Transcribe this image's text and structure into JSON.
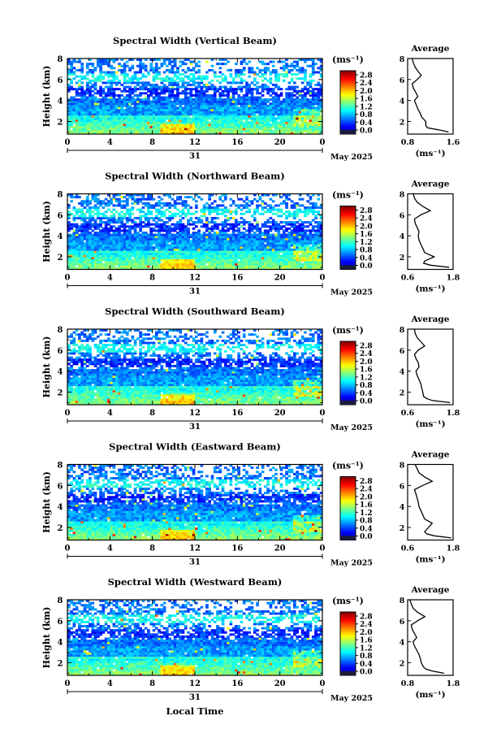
{
  "figure": {
    "xlabel": "Local Time",
    "date_label": "May 2025",
    "day_label": "31",
    "height_label": "Height (km)",
    "unit_label": "(ms⁻¹)",
    "avg_title": "Average",
    "avg_unit": "(ms⁻¹)"
  },
  "chart_data": [
    {
      "type": "heatmap",
      "title": "Spectral Width (Vertical Beam)",
      "x_ticks": [
        "0",
        "4",
        "8",
        "12",
        "16",
        "20",
        "0"
      ],
      "y_ticks": [
        "8",
        "6",
        "4",
        "2"
      ],
      "colorbar_ticks": [
        "2.8",
        "2.4",
        "2.0",
        "1.6",
        "1.2",
        "0.8",
        "0.4",
        "0.0"
      ],
      "xlim": [
        0,
        24
      ],
      "ylim": [
        0.8,
        8
      ],
      "clim": [
        0,
        2.8
      ],
      "profile": {
        "title": "Average",
        "xlim": [
          0.8,
          1.6
        ],
        "x_ticks": [
          "0.8",
          "1.6"
        ],
        "y_ticks": [
          "8",
          "6",
          "4",
          "2"
        ],
        "heights": [
          1.0,
          1.2,
          1.4,
          1.6,
          2.0,
          2.4,
          2.8,
          3.2,
          3.6,
          4.0,
          4.4,
          4.8,
          5.2,
          5.6,
          6.0,
          6.4,
          6.8,
          7.2,
          7.6,
          8.0
        ],
        "values": [
          1.52,
          1.35,
          1.15,
          1.12,
          1.12,
          1.05,
          1.02,
          0.98,
          0.95,
          0.92,
          0.98,
          0.94,
          0.9,
          0.88,
          0.97,
          1.04,
          0.98,
          0.93,
          0.9,
          0.88
        ]
      }
    },
    {
      "type": "heatmap",
      "title": "Spectral Width (Northward Beam)",
      "x_ticks": [
        "0",
        "4",
        "8",
        "12",
        "16",
        "20",
        "0"
      ],
      "y_ticks": [
        "8",
        "6",
        "4",
        "2"
      ],
      "colorbar_ticks": [
        "2.8",
        "2.4",
        "2.0",
        "1.6",
        "1.2",
        "0.8",
        "0.4",
        "0.0"
      ],
      "xlim": [
        0,
        24
      ],
      "ylim": [
        0.8,
        8
      ],
      "clim": [
        0,
        2.8
      ],
      "profile": {
        "title": "Average",
        "xlim": [
          0.6,
          1.8
        ],
        "x_ticks": [
          "0.6",
          "1.8"
        ],
        "y_ticks": [
          "8",
          "6",
          "4",
          "2"
        ],
        "heights": [
          1.0,
          1.2,
          1.4,
          1.6,
          2.0,
          2.4,
          2.8,
          3.2,
          3.6,
          4.0,
          4.4,
          4.8,
          5.2,
          5.6,
          6.0,
          6.4,
          6.8,
          7.2,
          7.6,
          8.0
        ],
        "values": [
          1.7,
          1.2,
          1.02,
          1.05,
          1.3,
          1.05,
          1.0,
          0.95,
          0.9,
          0.88,
          0.9,
          0.85,
          0.8,
          0.78,
          0.95,
          1.2,
          1.0,
          0.85,
          0.78,
          0.75
        ]
      }
    },
    {
      "type": "heatmap",
      "title": "Spectral Width (Southward Beam)",
      "x_ticks": [
        "0",
        "4",
        "8",
        "12",
        "16",
        "20",
        "0"
      ],
      "y_ticks": [
        "8",
        "6",
        "4",
        "2"
      ],
      "colorbar_ticks": [
        "2.8",
        "2.4",
        "2.0",
        "1.6",
        "1.2",
        "0.8",
        "0.4",
        "0.0"
      ],
      "xlim": [
        0,
        24
      ],
      "ylim": [
        0.8,
        8
      ],
      "clim": [
        0,
        2.8
      ],
      "profile": {
        "title": "Average",
        "xlim": [
          0.6,
          1.8
        ],
        "x_ticks": [
          "0.6",
          "1.8"
        ],
        "y_ticks": [
          "8",
          "6",
          "4",
          "2"
        ],
        "heights": [
          1.0,
          1.2,
          1.4,
          1.6,
          2.0,
          2.4,
          2.8,
          3.2,
          3.6,
          4.0,
          4.4,
          4.8,
          5.2,
          5.6,
          6.0,
          6.4,
          6.8,
          7.2,
          7.6,
          8.0
        ],
        "values": [
          1.72,
          1.25,
          1.1,
          1.02,
          1.0,
          0.97,
          0.95,
          0.9,
          0.85,
          0.82,
          0.9,
          0.88,
          0.82,
          0.78,
          0.88,
          1.05,
          0.95,
          0.85,
          0.8,
          0.78
        ]
      }
    },
    {
      "type": "heatmap",
      "title": "Spectral Width (Eastward Beam)",
      "x_ticks": [
        "0",
        "4",
        "8",
        "12",
        "16",
        "20",
        "0"
      ],
      "y_ticks": [
        "8",
        "6",
        "4",
        "2"
      ],
      "colorbar_ticks": [
        "2.8",
        "2.4",
        "2.0",
        "1.6",
        "1.2",
        "0.8",
        "0.4",
        "0.0"
      ],
      "xlim": [
        0,
        24
      ],
      "ylim": [
        0.8,
        8
      ],
      "clim": [
        0,
        2.8
      ],
      "profile": {
        "title": "Average",
        "xlim": [
          0.6,
          1.8
        ],
        "x_ticks": [
          "0.6",
          "1.8"
        ],
        "y_ticks": [
          "8",
          "6",
          "4",
          "2"
        ],
        "heights": [
          1.0,
          1.2,
          1.4,
          1.6,
          2.0,
          2.4,
          2.8,
          3.2,
          3.6,
          4.0,
          4.4,
          4.8,
          5.2,
          5.6,
          6.0,
          6.4,
          6.8,
          7.2,
          7.6,
          8.0
        ],
        "values": [
          1.75,
          1.3,
          1.1,
          1.05,
          1.15,
          1.25,
          1.05,
          1.0,
          0.95,
          0.9,
          0.88,
          0.85,
          0.82,
          0.78,
          1.0,
          1.25,
          1.05,
          0.9,
          0.85,
          0.8
        ]
      }
    },
    {
      "type": "heatmap",
      "title": "Spectral Width (Westward Beam)",
      "x_ticks": [
        "0",
        "4",
        "8",
        "12",
        "16",
        "20",
        "0"
      ],
      "y_ticks": [
        "8",
        "6",
        "4",
        "2"
      ],
      "colorbar_ticks": [
        "2.8",
        "2.4",
        "2.0",
        "1.6",
        "1.2",
        "0.8",
        "0.4",
        "0.0"
      ],
      "xlim": [
        0,
        24
      ],
      "ylim": [
        0.8,
        8
      ],
      "clim": [
        0,
        2.8
      ],
      "profile": {
        "title": "Average",
        "xlim": [
          0.8,
          1.8
        ],
        "x_ticks": [
          "0.8",
          "1.8"
        ],
        "y_ticks": [
          "8",
          "6",
          "4",
          "2"
        ],
        "heights": [
          1.0,
          1.2,
          1.4,
          1.6,
          2.0,
          2.4,
          2.8,
          3.2,
          3.6,
          4.0,
          4.4,
          4.8,
          5.2,
          5.6,
          6.0,
          6.4,
          6.8,
          7.2,
          7.6,
          8.0
        ],
        "values": [
          1.6,
          1.35,
          1.2,
          1.15,
          1.1,
          1.08,
          1.05,
          1.0,
          0.95,
          0.92,
          1.0,
          0.95,
          0.9,
          0.88,
          1.02,
          1.18,
          1.02,
          0.92,
          0.88,
          0.85
        ]
      }
    }
  ]
}
